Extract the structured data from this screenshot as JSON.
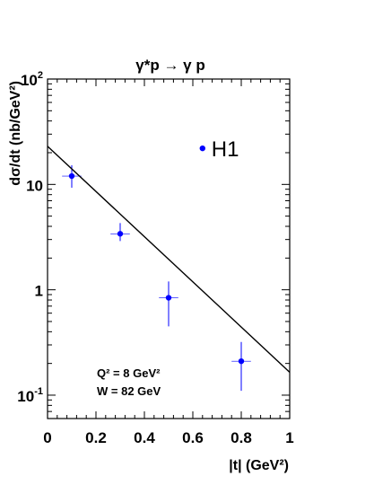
{
  "chart_data": {
    "type": "scatter",
    "title": "γ*p → γ p",
    "xlabel": "|t|  (GeV²)",
    "ylabel": "dσ/dt  (nb/GeV²)",
    "x_range": [
      0,
      1
    ],
    "y_range": [
      0.06,
      100
    ],
    "y_scale": "log",
    "x_ticks": [
      "0",
      "0.2",
      "0.4",
      "0.6",
      "0.8",
      "1"
    ],
    "x_tick_values": [
      0,
      0.2,
      0.4,
      0.6,
      0.8,
      1
    ],
    "y_ticks": [
      {
        "value": 100,
        "base": "10",
        "exp": "2"
      },
      {
        "value": 10,
        "base": "10",
        "exp": ""
      },
      {
        "value": 1,
        "base": "1",
        "exp": ""
      },
      {
        "value": 0.1,
        "base": "10",
        "exp": "-1"
      }
    ],
    "series": [
      {
        "name": "H1",
        "kind": "points",
        "color": "#0000ff",
        "points": [
          {
            "x": 0.1,
            "y": 12.0,
            "y_lo": 9.3,
            "y_hi": 15.2,
            "x_err": 0.04
          },
          {
            "x": 0.3,
            "y": 3.4,
            "y_lo": 2.9,
            "y_hi": 4.3,
            "x_err": 0.04
          },
          {
            "x": 0.5,
            "y": 0.84,
            "y_lo": 0.45,
            "y_hi": 1.2,
            "x_err": 0.04
          },
          {
            "x": 0.8,
            "y": 0.21,
            "y_lo": 0.11,
            "y_hi": 0.32,
            "x_err": 0.04
          }
        ]
      },
      {
        "name": "",
        "kind": "line",
        "color": "#000000",
        "points": [
          {
            "x": 0.0,
            "y": 23.0
          },
          {
            "x": 1.0,
            "y": 0.165
          }
        ]
      }
    ],
    "legend": {
      "label": "H1",
      "placement": "top-right"
    },
    "annotations": {
      "q2": "Q² = 8 GeV²",
      "w": "W = 82 GeV"
    },
    "grid": false
  }
}
